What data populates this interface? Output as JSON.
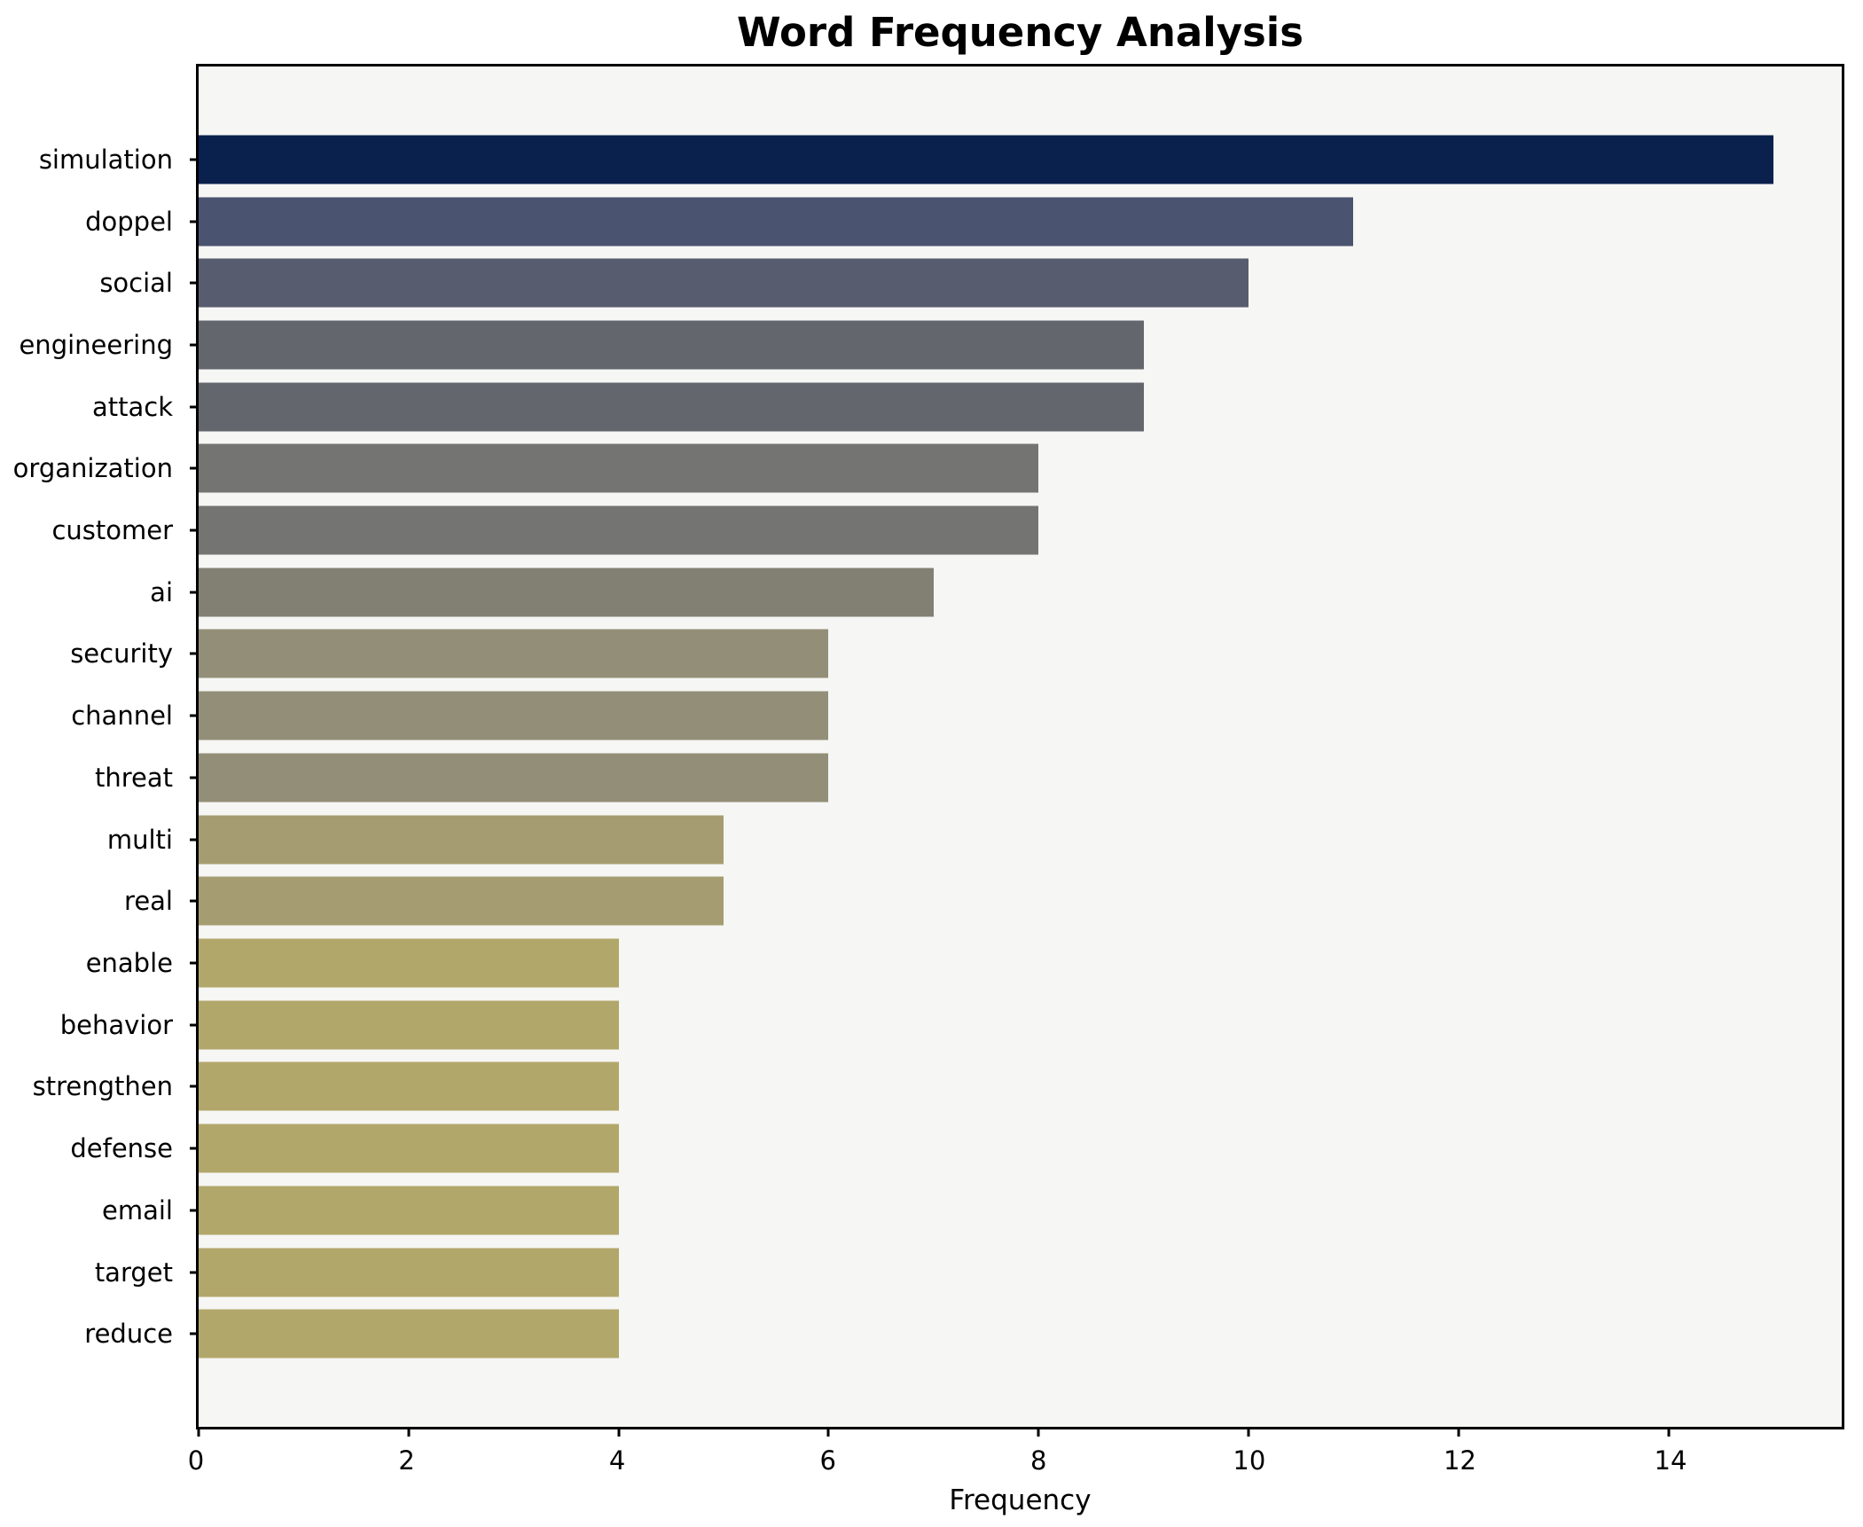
{
  "chart": {
    "title": "Word Frequency Analysis",
    "xlabel": "Frequency",
    "plot_background": "#f6f6f4",
    "figure_background": "#ffffff",
    "axis_color": "#000000"
  },
  "chart_data": {
    "type": "bar",
    "orientation": "horizontal",
    "title": "Word Frequency Analysis",
    "xlabel": "Frequency",
    "ylabel": "",
    "categories": [
      "simulation",
      "doppel",
      "social",
      "engineering",
      "attack",
      "organization",
      "customer",
      "ai",
      "security",
      "channel",
      "threat",
      "multi",
      "real",
      "enable",
      "behavior",
      "strengthen",
      "defense",
      "email",
      "target",
      "reduce"
    ],
    "values": [
      15,
      11,
      10,
      9,
      9,
      8,
      8,
      7,
      6,
      6,
      6,
      5,
      5,
      4,
      4,
      4,
      4,
      4,
      4,
      4
    ],
    "bar_colors": [
      "#0a214d",
      "#4a536f",
      "#575d6e",
      "#64666e",
      "#64666e",
      "#747473",
      "#747473",
      "#828072",
      "#938e77",
      "#938e77",
      "#938e77",
      "#a59d71",
      "#a59d71",
      "#b2a76a",
      "#b2a76a",
      "#b2a76a",
      "#b2a76a",
      "#b2a76a",
      "#b2a76a",
      "#b2a76a"
    ],
    "x_ticks": [
      0,
      2,
      4,
      6,
      8,
      10,
      12,
      14
    ],
    "xlim": [
      0,
      15.65
    ],
    "grid": false,
    "legend": null,
    "colormap": "cividis"
  }
}
